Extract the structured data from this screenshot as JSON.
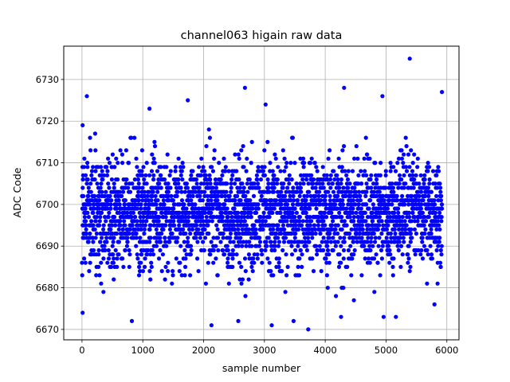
{
  "chart_data": {
    "type": "scatter",
    "title": "channel063 higain raw data",
    "xlabel": "sample number",
    "ylabel": "ADC Code",
    "xlim": [
      -300,
      6200
    ],
    "ylim": [
      6667.5,
      6738
    ],
    "xticks": [
      0,
      1000,
      2000,
      3000,
      4000,
      5000,
      6000
    ],
    "xtick_labels": [
      "0",
      "1000",
      "2000",
      "3000",
      "4000",
      "5000",
      "6000"
    ],
    "yticks": [
      6670,
      6680,
      6690,
      6700,
      6710,
      6720,
      6730
    ],
    "ytick_labels": [
      "6670",
      "6680",
      "6690",
      "6700",
      "6710",
      "6720",
      "6730"
    ],
    "grid": true,
    "marker_color": "#0000ff",
    "x_range": [
      0,
      5920
    ],
    "center": 6698,
    "spread": 6.5,
    "min_value": 6670,
    "max_value": 6735,
    "notable_points": [
      {
        "x": 5390,
        "y": 6735
      },
      {
        "x": 3720,
        "y": 6670
      },
      {
        "x": 2130,
        "y": 6671
      },
      {
        "x": 3120,
        "y": 6671
      },
      {
        "x": 80,
        "y": 6726
      },
      {
        "x": 2680,
        "y": 6728
      },
      {
        "x": 4310,
        "y": 6728
      },
      {
        "x": 4940,
        "y": 6726
      },
      {
        "x": 5920,
        "y": 6727
      },
      {
        "x": 820,
        "y": 6672
      },
      {
        "x": 2570,
        "y": 6672
      },
      {
        "x": 4260,
        "y": 6673
      },
      {
        "x": 4960,
        "y": 6673
      },
      {
        "x": 10,
        "y": 6674
      },
      {
        "x": 10,
        "y": 6719
      },
      {
        "x": 1110,
        "y": 6723
      },
      {
        "x": 1740,
        "y": 6725
      },
      {
        "x": 3020,
        "y": 6724
      },
      {
        "x": 3480,
        "y": 6672
      }
    ]
  }
}
